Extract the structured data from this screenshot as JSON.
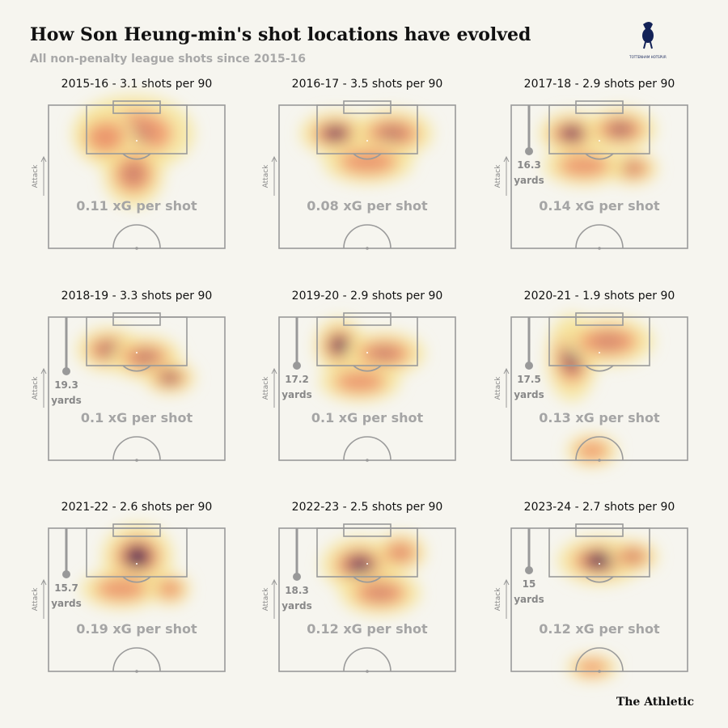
{
  "header": {
    "title": "How Son Heung-min's shot locations have evolved",
    "subtitle": "All non-penalty league shots since 2015-16",
    "logo_text": "TOTTENHAM HOTSPUR"
  },
  "panels": [
    {
      "title": "2015-16 - 3.1 shots per 90",
      "xg": "0.11 xG per shot",
      "axis_label": "Attack"
    },
    {
      "title": "2016-17 - 3.5 shots per 90",
      "xg": "0.08 xG per shot",
      "axis_label": "Attack"
    },
    {
      "title": "2017-18 - 2.9 shots per 90",
      "xg": "0.14 xG per shot",
      "axis_label": "Attack",
      "distance": "16.3",
      "distance_unit": "yards"
    },
    {
      "title": "2018-19 - 3.3 shots per 90",
      "xg": "0.1 xG per shot",
      "axis_label": "Attack",
      "distance": "19.3",
      "distance_unit": "yards"
    },
    {
      "title": "2019-20 - 2.9 shots per 90",
      "xg": "0.1 xG per shot",
      "axis_label": "Attack",
      "distance": "17.2",
      "distance_unit": "yards"
    },
    {
      "title": "2020-21 - 1.9 shots per 90",
      "xg": "0.13 xG per shot",
      "axis_label": "Attack",
      "distance": "17.5",
      "distance_unit": "yards"
    },
    {
      "title": "2021-22 - 2.6 shots per 90",
      "xg": "0.19 xG per shot",
      "axis_label": "Attack",
      "distance": "15.7",
      "distance_unit": "yards"
    },
    {
      "title": "2022-23 - 2.5 shots per 90",
      "xg": "0.12 xG per shot",
      "axis_label": "Attack",
      "distance": "18.3",
      "distance_unit": "yards"
    },
    {
      "title": "2023-24 - 2.7 shots per 90",
      "xg": "0.12 xG per shot",
      "axis_label": "Attack",
      "distance": "15",
      "distance_unit": "yards"
    }
  ],
  "footer": {
    "source": "The Athletic"
  }
}
